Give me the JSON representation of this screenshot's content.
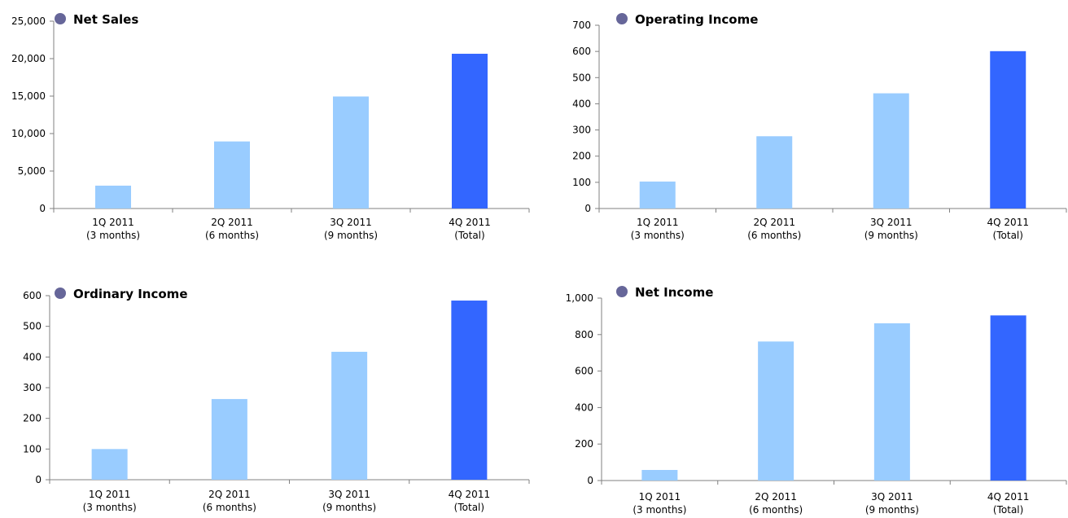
{
  "colors": {
    "bar": "#99ccff",
    "bar_highlight": "#3366ff",
    "title_marker": "#666699"
  },
  "chart_data": [
    {
      "type": "bar",
      "title": "Net Sales",
      "categories": [
        "1Q 2011",
        "2Q 2011",
        "3Q 2011",
        "4Q 2011"
      ],
      "category_sublabels": [
        "(3 months)",
        "(6 months)",
        "(9 months)",
        "(Total)"
      ],
      "values": [
        3050,
        8950,
        14950,
        20650
      ],
      "highlight_index": 3,
      "ylim": [
        0,
        25000
      ],
      "yticks": [
        0,
        5000,
        10000,
        15000,
        20000,
        25000
      ],
      "ytick_labels": [
        "0",
        "5,000",
        "10,000",
        "15,000",
        "20,000",
        "25,000"
      ],
      "xlabel": "",
      "ylabel": "",
      "grid": false,
      "legend": "none"
    },
    {
      "type": "bar",
      "title": "Operating Income",
      "categories": [
        "1Q 2011",
        "2Q 2011",
        "3Q 2011",
        "4Q 2011"
      ],
      "category_sublabels": [
        "(3 months)",
        "(6 months)",
        "(9 months)",
        "(Total)"
      ],
      "values": [
        103,
        276,
        440,
        601
      ],
      "highlight_index": 3,
      "ylim": [
        0,
        700
      ],
      "yticks": [
        0,
        100,
        200,
        300,
        400,
        500,
        600,
        700
      ],
      "ytick_labels": [
        "0",
        "100",
        "200",
        "300",
        "400",
        "500",
        "600",
        "700"
      ],
      "xlabel": "",
      "ylabel": "",
      "grid": false,
      "legend": "none"
    },
    {
      "type": "bar",
      "title": "Ordinary Income",
      "categories": [
        "1Q 2011",
        "2Q 2011",
        "3Q 2011",
        "4Q 2011"
      ],
      "category_sublabels": [
        "(3 months)",
        "(6 months)",
        "(9 months)",
        "(Total)"
      ],
      "values": [
        100,
        263,
        417,
        584
      ],
      "highlight_index": 3,
      "ylim": [
        0,
        600
      ],
      "yticks": [
        0,
        100,
        200,
        300,
        400,
        500,
        600
      ],
      "ytick_labels": [
        "0",
        "100",
        "200",
        "300",
        "400",
        "500",
        "600"
      ],
      "xlabel": "",
      "ylabel": "",
      "grid": false,
      "legend": "none"
    },
    {
      "type": "bar",
      "title": "Net Income",
      "categories": [
        "1Q 2011",
        "2Q 2011",
        "3Q 2011",
        "4Q 2011"
      ],
      "category_sublabels": [
        "(3 months)",
        "(6 months)",
        "(9 months)",
        "(Total)"
      ],
      "values": [
        58,
        762,
        862,
        905
      ],
      "highlight_index": 3,
      "ylim": [
        0,
        1000
      ],
      "yticks": [
        0,
        200,
        400,
        600,
        800,
        1000
      ],
      "ytick_labels": [
        "0",
        "200",
        "400",
        "600",
        "800",
        "1,000"
      ],
      "xlabel": "",
      "ylabel": "",
      "grid": false,
      "legend": "none"
    }
  ]
}
